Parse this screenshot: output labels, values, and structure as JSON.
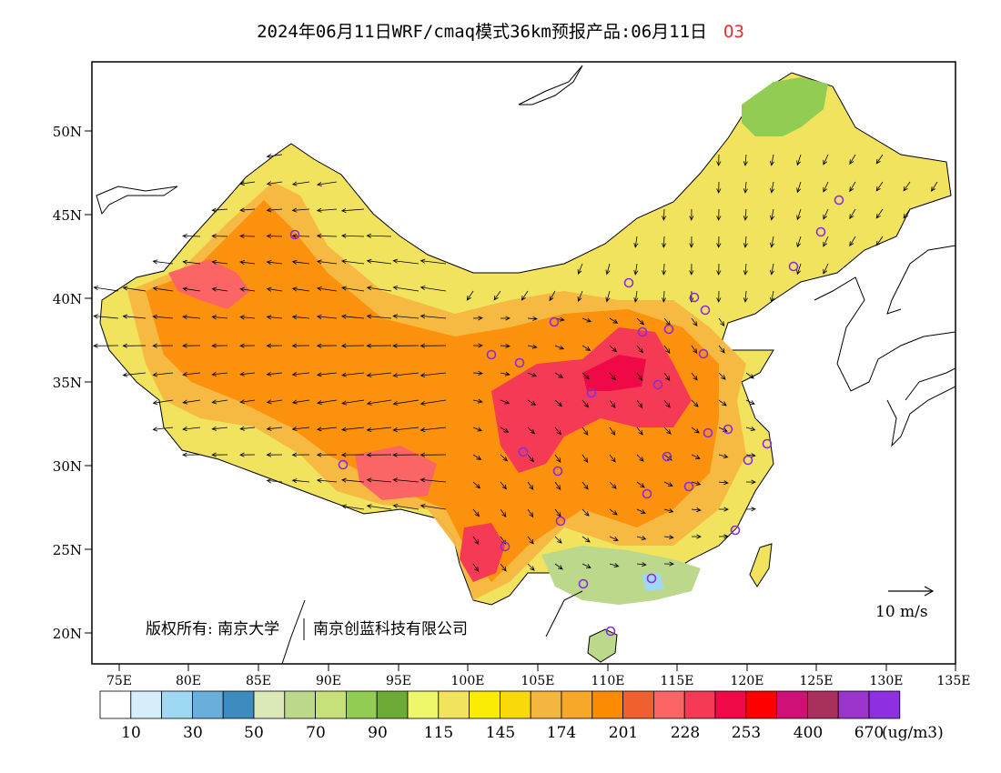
{
  "title": "2024年06月11日WRF/cmaq模式36km预报产品:06月11日",
  "species": "O3",
  "copyright": "版权所有: 南京大学",
  "copyright_org": "南京创蓝科技有限公司",
  "wind_ref_label": "10 m/s",
  "axes": {
    "lon_labels": [
      "75E",
      "80E",
      "85E",
      "90E",
      "95E",
      "100E",
      "105E",
      "110E",
      "115E",
      "120E",
      "125E",
      "130E",
      "135E"
    ],
    "lat_labels": [
      "50N",
      "45N",
      "40N",
      "35N",
      "30N",
      "25N",
      "20N"
    ]
  },
  "colorbar": {
    "colors": [
      "#ffffff",
      "#d6eef9",
      "#9fd8f2",
      "#6aaedc",
      "#3e8bc0",
      "#dbe8b8",
      "#bcd88a",
      "#c6e07a",
      "#92cc52",
      "#6eaa36",
      "#eef76a",
      "#f2e35e",
      "#fbec04",
      "#f9d90a",
      "#f5b640",
      "#f7a828",
      "#fc8a02",
      "#f0602e",
      "#fc6565",
      "#f53a56",
      "#ef0a47",
      "#fe0000",
      "#cf1076",
      "#a9305d",
      "#9a34cb",
      "#8e2fe2"
    ],
    "labels": [
      "10",
      "30",
      "50",
      "70",
      "90",
      "115",
      "145",
      "174",
      "201",
      "228",
      "253",
      "400",
      "670"
    ],
    "unit": "(ug/m3)"
  },
  "colors": {
    "background": "#ffffff",
    "species_accent": "#e03030",
    "city_marker": "#8a2be2"
  }
}
